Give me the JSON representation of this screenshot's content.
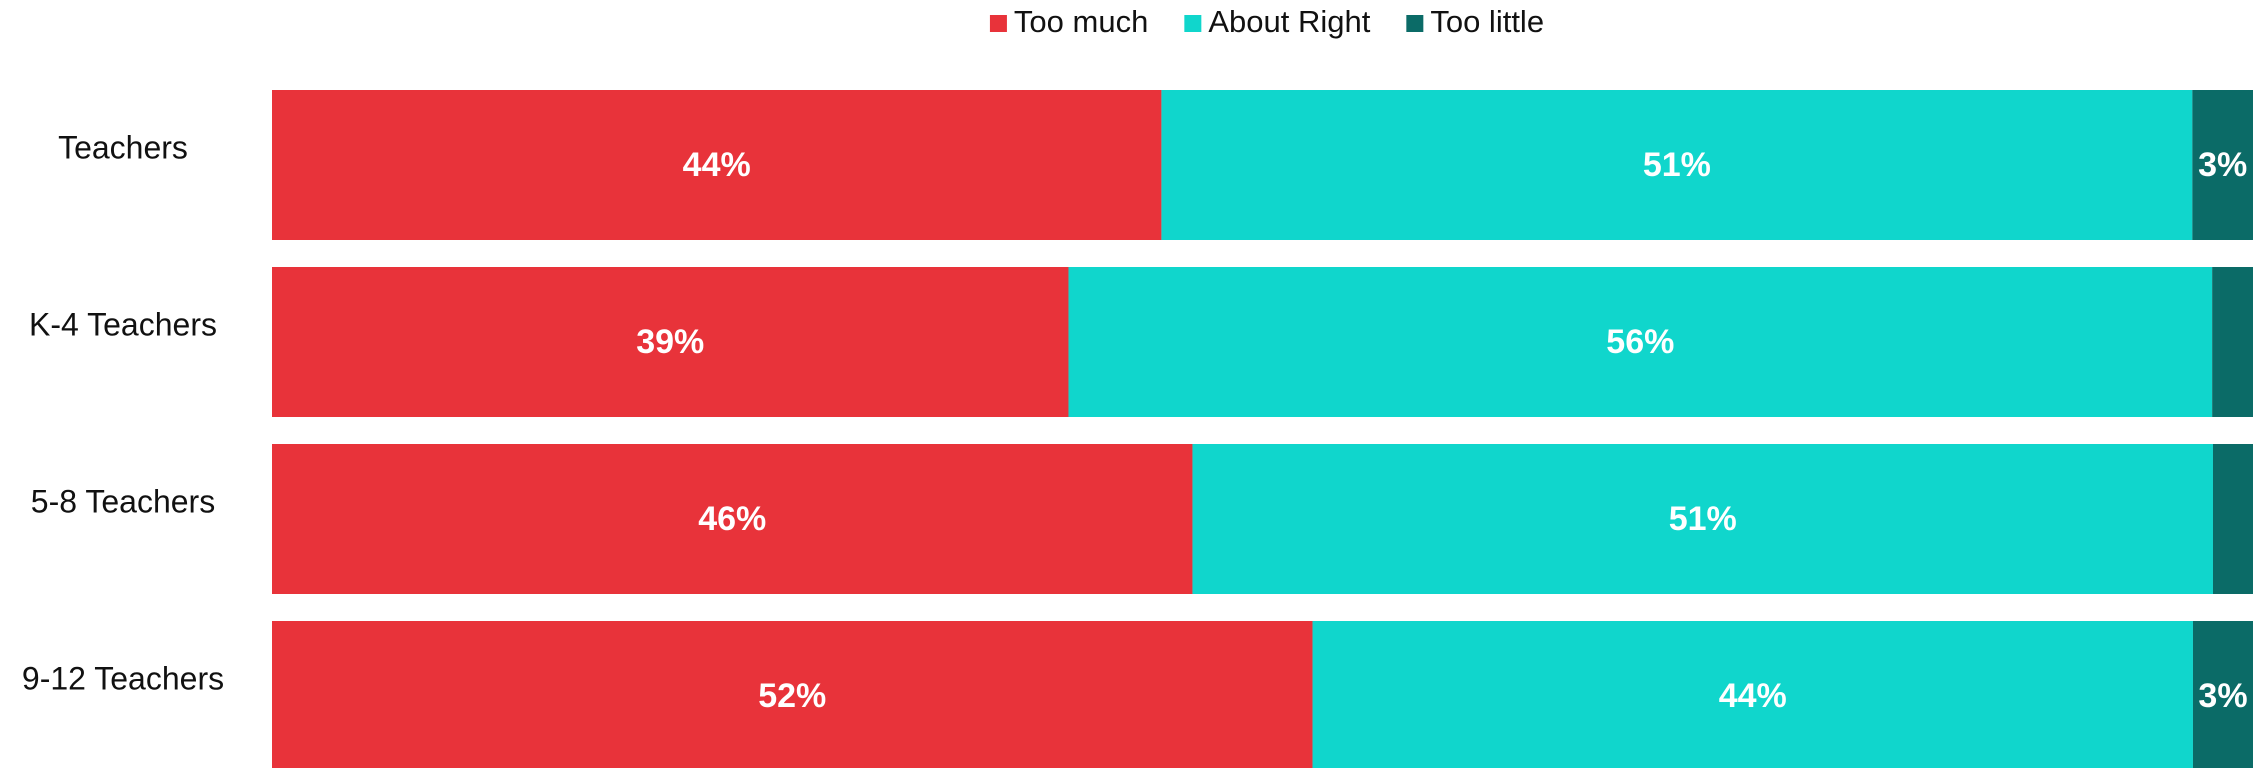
{
  "chart_data": {
    "type": "stacked_bar_horizontal",
    "categories": [
      "Teachers",
      "K-4 Teachers",
      "5-8 Teachers",
      "9-12 Teachers"
    ],
    "series": [
      {
        "name": "Too much",
        "color": "#e8333a",
        "values": [
          44,
          39,
          46,
          52
        ],
        "value_labels": [
          "44%",
          "39%",
          "46%",
          "52%"
        ]
      },
      {
        "name": "About Right",
        "color": "#10d6cc",
        "values": [
          51,
          56,
          51,
          44
        ],
        "value_labels": [
          "51%",
          "56%",
          "51%",
          "44%"
        ]
      },
      {
        "name": "Too little",
        "color": "#0b6b67",
        "values": [
          3,
          2,
          2,
          3
        ],
        "value_labels": [
          "3%",
          null,
          null,
          "3%"
        ]
      }
    ],
    "legend": "top"
  }
}
